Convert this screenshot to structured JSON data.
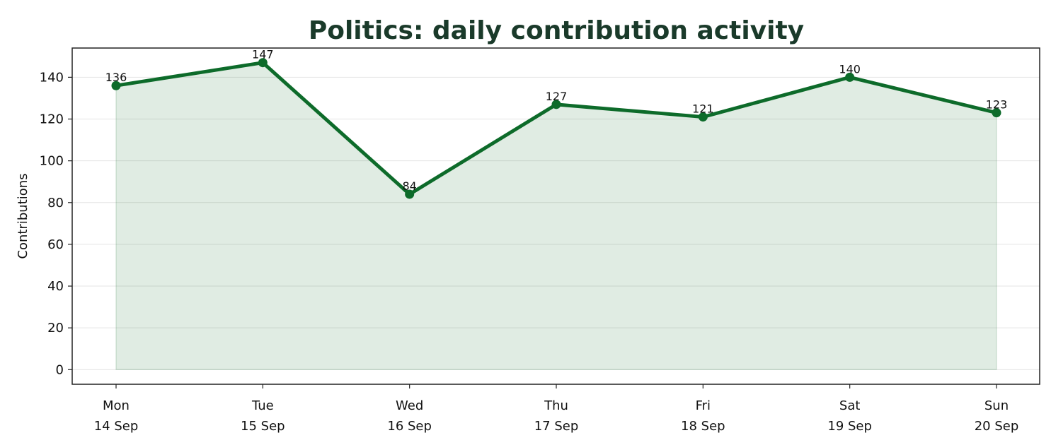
{
  "chart_data": {
    "type": "area",
    "title": "Politics: daily contribution activity",
    "xlabel": "",
    "ylabel": "Contributions",
    "categories": [
      {
        "day": "Mon",
        "date": "14 Sep"
      },
      {
        "day": "Tue",
        "date": "15 Sep"
      },
      {
        "day": "Wed",
        "date": "16 Sep"
      },
      {
        "day": "Thu",
        "date": "17 Sep"
      },
      {
        "day": "Fri",
        "date": "18 Sep"
      },
      {
        "day": "Sat",
        "date": "19 Sep"
      },
      {
        "day": "Sun",
        "date": "20 Sep"
      }
    ],
    "values": [
      136,
      147,
      84,
      127,
      121,
      140,
      123
    ],
    "ylim": [
      -7,
      154
    ],
    "yticks": [
      0,
      20,
      40,
      60,
      80,
      100,
      120,
      140
    ],
    "grid": true,
    "data_labels": true,
    "line_color": "#0d6b2a",
    "fill_color": "#0d6b2a"
  }
}
